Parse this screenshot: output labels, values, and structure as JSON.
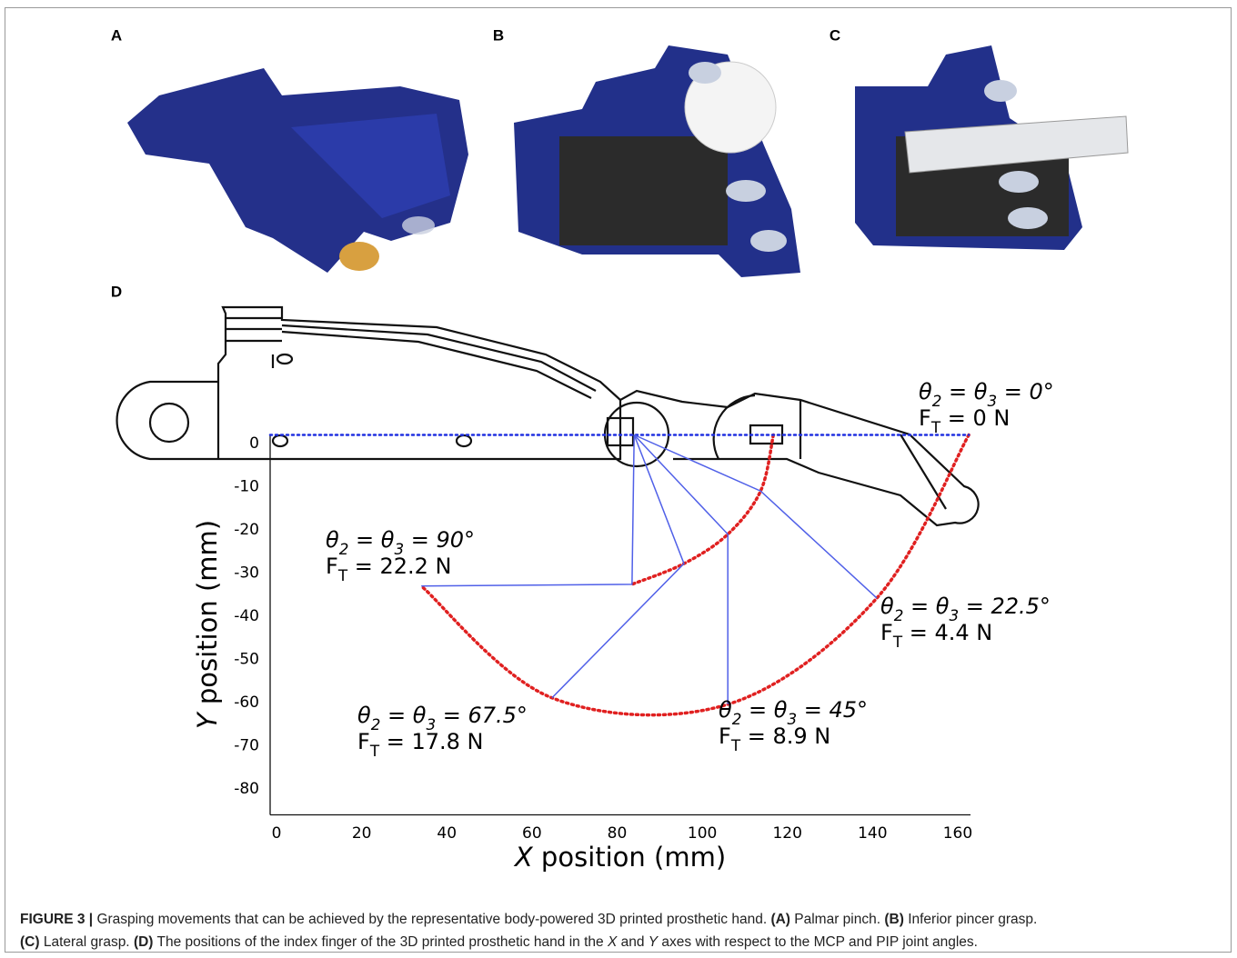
{
  "panel_labels": [
    "A",
    "B",
    "C",
    "D"
  ],
  "panel_d": {
    "xlim": [
      -1.5,
      163
    ],
    "ylim": [
      -86,
      2
    ],
    "xticks": [
      0,
      20,
      40,
      60,
      80,
      100,
      120,
      140,
      160
    ],
    "yticks": [
      0,
      -10,
      -20,
      -30,
      -40,
      -50,
      -60,
      -70,
      -80
    ],
    "xlabel": [
      "X",
      " position (mm)"
    ],
    "ylabel": [
      "Y",
      " position (mm)"
    ],
    "mcp": {
      "x": 84,
      "y": 2
    },
    "fingers": [
      {
        "pip_x": 116.7,
        "pip_y": 2,
        "tip_x": 162.6,
        "tip_y": 2,
        "angle_label": [
          "θ",
          "2",
          " = θ",
          "3",
          " = 0°"
        ],
        "force_label": [
          "F",
          "T",
          " = 0 N"
        ]
      },
      {
        "pip_x": 113.7,
        "pip_y": -11,
        "tip_x": 141,
        "tip_y": -35.8,
        "angle_label": [
          "θ",
          "2",
          " = θ",
          "3",
          " = 22.5°"
        ],
        "force_label": [
          "F",
          "T",
          " = 4.4 N"
        ]
      },
      {
        "pip_x": 106,
        "pip_y": -21,
        "tip_x": 106,
        "tip_y": -60.4,
        "angle_label": [
          "θ",
          "2",
          " = θ",
          "3",
          " = 45°"
        ],
        "force_label": [
          "F",
          "T",
          " = 8.9 N"
        ]
      },
      {
        "pip_x": 95.7,
        "pip_y": -27.8,
        "tip_x": 64.7,
        "tip_y": -58.9,
        "angle_label": [
          "θ",
          "2",
          " = θ",
          "3",
          " = 67.5°"
        ],
        "force_label": [
          "F",
          "T",
          " = 17.8 N"
        ]
      },
      {
        "pip_x": 83.5,
        "pip_y": -32.6,
        "tip_x": 34,
        "tip_y": -33,
        "angle_label": [
          "θ",
          "2",
          " = θ",
          "3",
          " = 90°"
        ],
        "force_label": [
          "F",
          "T",
          " = 22.2 N"
        ]
      }
    ]
  },
  "caption": {
    "line1": [
      "FIGURE 3 |",
      " Grasping movements that can be achieved by the representative body-powered 3D printed prosthetic hand. ",
      "(A)",
      " Palmar pinch. ",
      "(B)",
      " Inferior pincer grasp."
    ],
    "line2": [
      "(C)",
      " Lateral grasp. ",
      "(D)",
      " The positions of the index finger of the 3D printed prosthetic hand in the ",
      "X",
      " and ",
      "Y",
      " axes with respect to the MCP and PIP joint angles."
    ]
  }
}
